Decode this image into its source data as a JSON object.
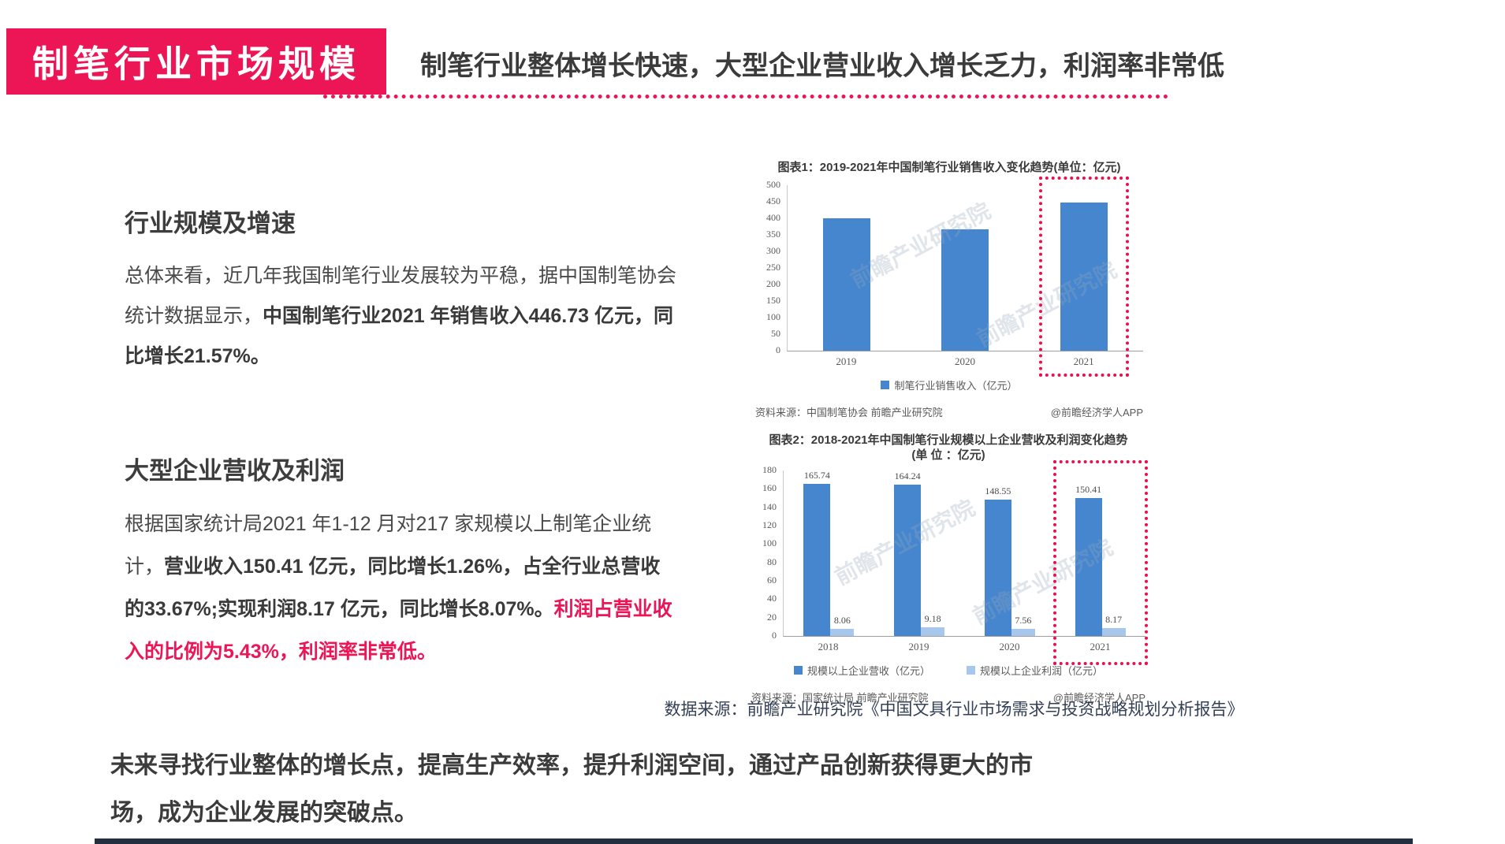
{
  "header": {
    "badge": "制笔行业市场规模",
    "headline": "制笔行业整体增长快速，大型企业营业收入增长乏力，利润率非常低"
  },
  "sections": {
    "s1": {
      "title": "行业规模及增速",
      "normal": "总体来看，近几年我国制笔行业发展较为平稳，据中国制笔协会统计数据显示，",
      "bold": "中国制笔行业2021 年销售收入446.73 亿元，同比增长21.57%。"
    },
    "s2": {
      "title": "大型企业营收及利润",
      "normal": "根据国家统计局2021 年1-12 月对217 家规模以上制笔企业统计，",
      "bold": "营业收入150.41 亿元，同比增长1.26%，占全行业总营收的33.67%;实现利润8.17 亿元，同比增长8.07%。",
      "red": "利润占营业收入的比例为5.43%，利润率非常低。"
    }
  },
  "chart_data": [
    {
      "type": "bar",
      "title": "图表1：2019-2021年中国制笔行业销售收入变化趋势(单位：亿元)",
      "categories": [
        "2019",
        "2020",
        "2021"
      ],
      "series": [
        {
          "name": "制笔行业销售收入（亿元）",
          "color": "#4586CE",
          "values": [
            400,
            367.5,
            446.73
          ]
        }
      ],
      "ylim": [
        0,
        500
      ],
      "ystep": 50,
      "show_value_labels": false,
      "highlight_index": 2,
      "highlight_color": "#E8104F",
      "legend_position": "bottom",
      "grid": false,
      "source": "资料来源：中国制笔协会 前瞻产业研究院",
      "credit": "@前瞻经济学人APP"
    },
    {
      "type": "bar",
      "title": "图表2：2018-2021年中国制笔行业规模以上企业营收及利润变化趋势(单 位 ：亿元)",
      "categories": [
        "2018",
        "2019",
        "2020",
        "2021"
      ],
      "series": [
        {
          "name": "规模以上企业营收（亿元）",
          "color": "#4586CE",
          "values": [
            165.74,
            164.24,
            148.55,
            150.41
          ]
        },
        {
          "name": "规模以上企业利润（亿元）",
          "color": "#A7C7EC",
          "values": [
            8.06,
            9.18,
            7.56,
            8.17
          ]
        }
      ],
      "ylim": [
        0,
        180
      ],
      "ystep": 20,
      "show_value_labels": true,
      "highlight_index": 3,
      "highlight_color": "#E8104F",
      "legend_position": "bottom",
      "grid": false,
      "source": "资料来源：国家统计局 前瞻产业研究院",
      "credit": "@前瞻经济学人APP"
    }
  ],
  "watermark": "前瞻产业研究院",
  "caption": "数据来源：前瞻产业研究院《中国文具行业市场需求与投资战略规划分析报告》",
  "bottom_text": "未来寻找行业整体的增长点，提高生产效率，提升利润空间，通过产品创新获得更大的市场，成为企业发展的突破点。",
  "colors": {
    "accent": "#EC1556",
    "bar_blue": "#4586CE",
    "bar_light_blue": "#A7C7EC",
    "text_dark": "#3B3B3B",
    "chart_gray": "#595959",
    "caption_navy": "#333F55"
  }
}
